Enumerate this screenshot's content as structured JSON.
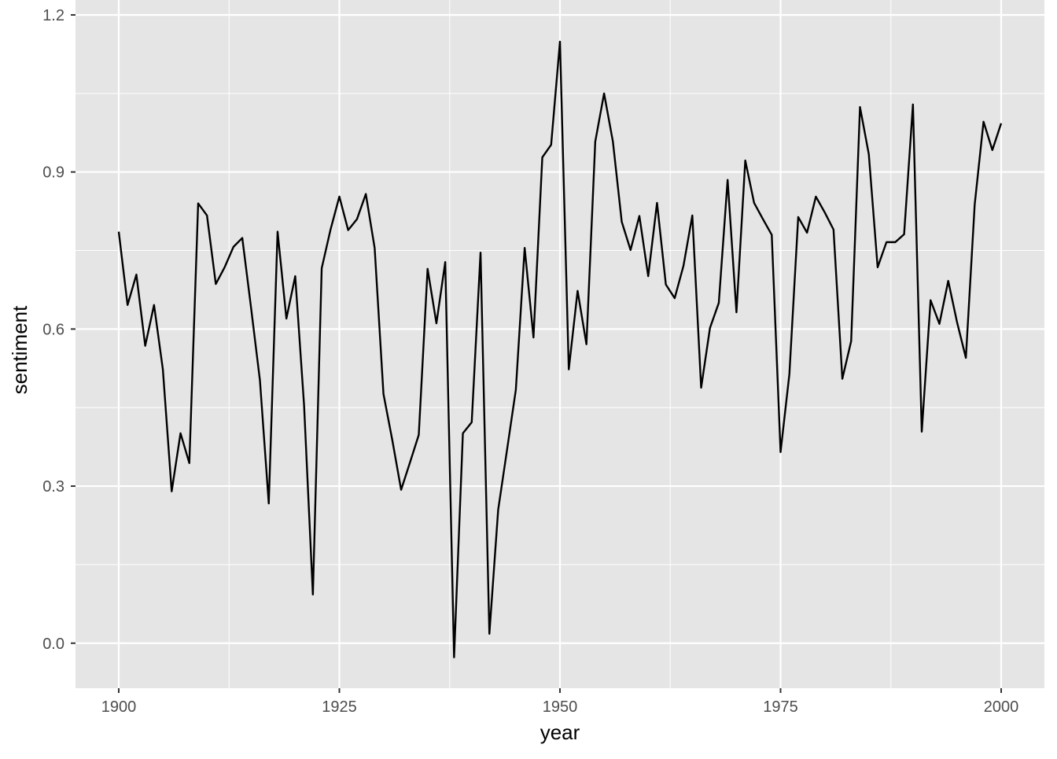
{
  "chart_data": {
    "type": "line",
    "x_label": "year",
    "y_label": "sentiment",
    "x": [
      1900,
      1901,
      1902,
      1903,
      1904,
      1905,
      1906,
      1907,
      1908,
      1909,
      1910,
      1911,
      1912,
      1913,
      1914,
      1915,
      1916,
      1917,
      1918,
      1919,
      1920,
      1921,
      1922,
      1923,
      1924,
      1925,
      1926,
      1927,
      1928,
      1929,
      1930,
      1931,
      1932,
      1933,
      1934,
      1935,
      1936,
      1937,
      1938,
      1939,
      1940,
      1941,
      1942,
      1943,
      1944,
      1945,
      1946,
      1947,
      1948,
      1949,
      1950,
      1951,
      1952,
      1953,
      1954,
      1955,
      1956,
      1957,
      1958,
      1959,
      1960,
      1961,
      1962,
      1963,
      1964,
      1965,
      1966,
      1967,
      1968,
      1969,
      1970,
      1971,
      1972,
      1973,
      1974,
      1975,
      1976,
      1977,
      1978,
      1979,
      1980,
      1981,
      1982,
      1983,
      1984,
      1985,
      1986,
      1987,
      1988,
      1989,
      1990,
      1991,
      1992,
      1993,
      1994,
      1995,
      1996,
      1997,
      1998,
      1999,
      2000
    ],
    "series": [
      {
        "color": "#000000",
        "values": [
          0.786,
          0.646,
          0.704,
          0.568,
          0.646,
          0.523,
          0.29,
          0.401,
          0.344,
          0.84,
          0.817,
          0.686,
          0.718,
          0.757,
          0.774,
          0.64,
          0.502,
          0.267,
          0.786,
          0.62,
          0.701,
          0.455,
          0.093,
          0.716,
          0.79,
          0.853,
          0.789,
          0.81,
          0.858,
          0.755,
          0.476,
          0.388,
          0.293,
          0.345,
          0.398,
          0.715,
          0.611,
          0.728,
          -0.027,
          0.401,
          0.422,
          0.746,
          0.018,
          0.255,
          0.369,
          0.484,
          0.755,
          0.584,
          0.928,
          0.952,
          1.149,
          0.523,
          0.673,
          0.571,
          0.958,
          1.05,
          0.958,
          0.805,
          0.751,
          0.816,
          0.701,
          0.841,
          0.685,
          0.659,
          0.721,
          0.817,
          0.488,
          0.602,
          0.65,
          0.885,
          0.632,
          0.922,
          0.841,
          0.81,
          0.78,
          0.365,
          0.514,
          0.814,
          0.784,
          0.853,
          0.823,
          0.79,
          0.505,
          0.577,
          1.024,
          0.934,
          0.718,
          0.766,
          0.766,
          0.781,
          1.029,
          0.404,
          0.655,
          0.61,
          0.692,
          0.613,
          0.545,
          0.838,
          0.996,
          0.942,
          0.993
        ]
      }
    ],
    "xlim": [
      1895.1,
      2004.9
    ],
    "ylim": [
      -0.086,
      1.2285
    ],
    "xticks": [
      1900,
      1925,
      1950,
      1975,
      2000
    ],
    "yticks": [
      {
        "value": 0,
        "label": "0.0"
      },
      0.3,
      0.6,
      0.9,
      1.2
    ],
    "x_minor_ticks": [
      1912.5,
      1937.5,
      1962.5,
      1987.5
    ],
    "y_minor_ticks": [
      0.15,
      0.45,
      0.75,
      1.05
    ],
    "grid": true,
    "panel_color": "#e5e5e5",
    "grid_color": "#ffffff"
  }
}
